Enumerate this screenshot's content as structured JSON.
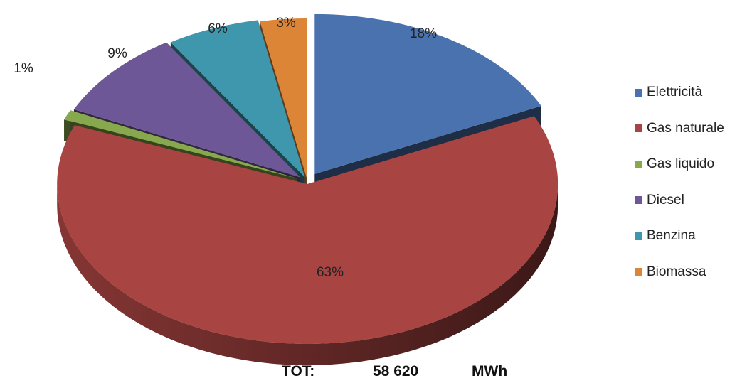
{
  "chart_data": {
    "type": "pie",
    "categories": [
      "Elettricità",
      "Gas naturale",
      "Gas liquido",
      "Diesel",
      "Benzina",
      "Biomassa"
    ],
    "values": [
      18,
      63,
      1,
      9,
      6,
      3
    ],
    "data_labels": [
      "18%",
      "63%",
      "1%",
      "9%",
      "6%",
      "3%"
    ],
    "colors": [
      "#4A72AE",
      "#A84441",
      "#87A84D",
      "#6E5796",
      "#3E97AC",
      "#DD8537"
    ],
    "legend_position": "right",
    "exploded": true,
    "three_d": true
  },
  "total": {
    "label": "TOT:",
    "value": "58 620",
    "unit": "MWh"
  }
}
